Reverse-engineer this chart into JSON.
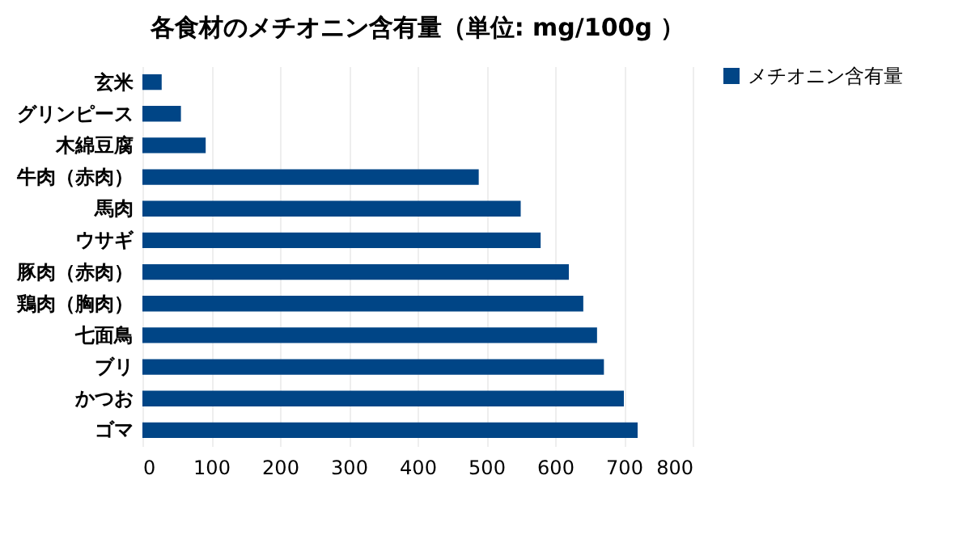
{
  "chart_data": {
    "type": "bar",
    "orientation": "horizontal",
    "title": "各食材のメチオニン含有量（単位: mg/100g ）",
    "categories": [
      "玄米",
      "グリンピース",
      "木綿豆腐",
      "牛肉（赤肉）",
      "馬肉",
      "ウサギ",
      "豚肉（赤肉）",
      "鶏肉（胸肉）",
      "七面鳥",
      "ブリ",
      "かつお",
      "ゴマ"
    ],
    "series": [
      {
        "name": "メチオニン含有量",
        "color": "#004586",
        "values": [
          28,
          56,
          92,
          489,
          550,
          579,
          620,
          641,
          661,
          671,
          700,
          720
        ]
      }
    ],
    "xlim": [
      0,
      800
    ],
    "xticks": [
      0,
      100,
      200,
      300,
      400,
      500,
      600,
      700,
      800
    ],
    "grid": "x",
    "legend": "right"
  }
}
